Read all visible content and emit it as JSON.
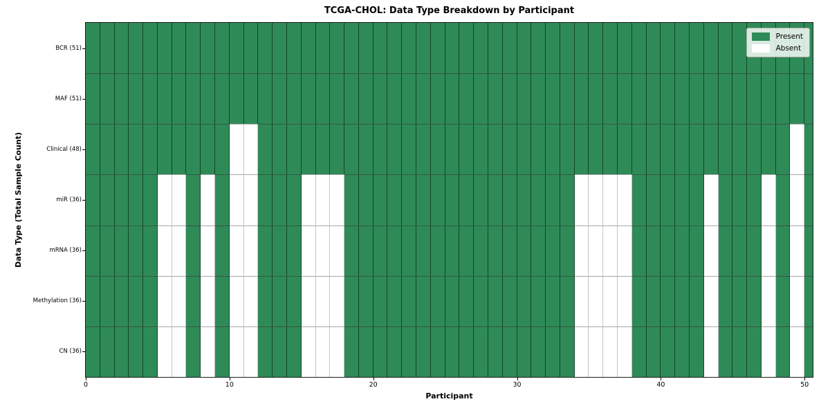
{
  "figure_title": "TCGA-CHOL: Data Type Breakdown by Participant",
  "chart_data": {
    "type": "heatmap",
    "title": "TCGA-CHOL: Data Type Breakdown by Participant",
    "xlabel": "Participant",
    "ylabel": "Data Type (Total Sample Count)",
    "n_participants": 51,
    "x_ticks": [
      0,
      10,
      20,
      30,
      40,
      50
    ],
    "xlim": [
      0,
      50.6
    ],
    "grid": true,
    "legend_position": "upper right",
    "rows": [
      {
        "label": "BCR (51)",
        "present_count": 51,
        "absent_participants": []
      },
      {
        "label": "MAF (51)",
        "present_count": 51,
        "absent_participants": []
      },
      {
        "label": "Clinical (48)",
        "present_count": 48,
        "absent_participants": [
          10,
          11,
          49
        ]
      },
      {
        "label": "miR (36)",
        "present_count": 36,
        "absent_participants": [
          5,
          6,
          8,
          10,
          11,
          15,
          16,
          17,
          34,
          35,
          36,
          37,
          43,
          47,
          49
        ]
      },
      {
        "label": "mRNA (36)",
        "present_count": 36,
        "absent_participants": [
          5,
          6,
          8,
          10,
          11,
          15,
          16,
          17,
          34,
          35,
          36,
          37,
          43,
          47,
          49
        ]
      },
      {
        "label": "Methylation (36)",
        "present_count": 36,
        "absent_participants": [
          5,
          6,
          8,
          10,
          11,
          15,
          16,
          17,
          34,
          35,
          36,
          37,
          43,
          47,
          49
        ]
      },
      {
        "label": "CN (36)",
        "present_count": 36,
        "absent_participants": [
          5,
          6,
          8,
          10,
          11,
          15,
          16,
          17,
          34,
          35,
          36,
          37,
          43,
          47,
          49
        ]
      }
    ],
    "legend": [
      {
        "label": "Present",
        "color": "#2e8b57"
      },
      {
        "label": "Absent",
        "color": "#ffffff"
      }
    ],
    "colors": {
      "present": "#2e8b57",
      "absent": "#ffffff",
      "cell_edge_on_present": "rgba(0,0,0,0.52)",
      "cell_edge_on_absent": "#c6c6c6",
      "gridline": "#6e6e6e",
      "spine": "#1a1a1a"
    }
  }
}
